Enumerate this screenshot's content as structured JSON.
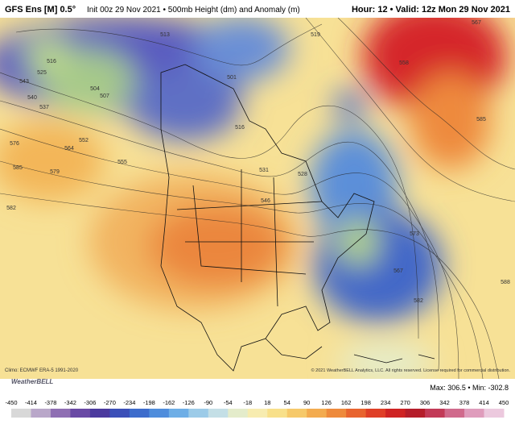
{
  "header": {
    "model": "GFS Ens [M] 0.5°",
    "subtitle": "Init 00z 29 Nov 2021 • 500mb Height (dm) and Anomaly (m)",
    "valid": "Hour: 12 • Valid: 12z Mon 29 Nov 2021"
  },
  "map": {
    "contour_labels": [
      "516",
      "525",
      "543",
      "540",
      "537",
      "504",
      "507",
      "513",
      "501",
      "516",
      "576",
      "564",
      "552",
      "585",
      "579",
      "555",
      "582",
      "531",
      "528",
      "546",
      "519",
      "558",
      "585",
      "573",
      "567",
      "582",
      "588",
      "567"
    ]
  },
  "footer": {
    "climo": "Climo: ECMWF ERA-5 1991-2020",
    "logo": "WeatherBELL",
    "copyright": "© 2021 WeatherBELL Analytics, LLC. All rights reserved. License required for commercial distribution.",
    "stats": "Max: 306.5 • Min: -302.8"
  },
  "colorbar": {
    "labels": [
      -450,
      -414,
      -378,
      -342,
      -306,
      -270,
      -234,
      -198,
      -162,
      -126,
      -90,
      -54,
      -18,
      18,
      54,
      90,
      126,
      162,
      198,
      234,
      270,
      306,
      342,
      378,
      414,
      450
    ],
    "colors": [
      "#d8d8d8",
      "#b9a7c9",
      "#8f6fb3",
      "#6a4aa5",
      "#4b3a9e",
      "#3b4fb8",
      "#3d6ccc",
      "#4f8ddc",
      "#6eaee6",
      "#9ccbe8",
      "#c4dfe6",
      "#e4eccb",
      "#f7ecb0",
      "#f8e08a",
      "#f6c96a",
      "#f3ab4f",
      "#ee8a3c",
      "#e8642f",
      "#df3f27",
      "#cf2323",
      "#b51d2a",
      "#c23a57",
      "#d06a8c",
      "#df9cbc",
      "#ecc9de"
    ]
  }
}
